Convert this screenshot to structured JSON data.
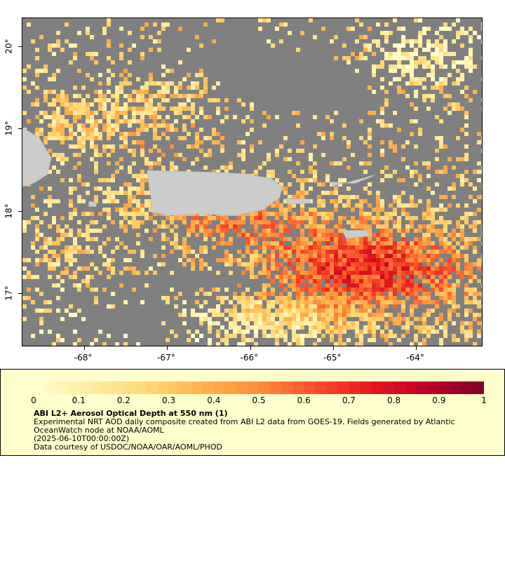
{
  "map": {
    "x_ticks": [
      "-68°",
      "-67°",
      "-66°",
      "-65°",
      "-64°"
    ],
    "y_ticks": [
      "20°",
      "19°",
      "18°",
      "17°"
    ],
    "x_tick_values": [
      -68,
      -67,
      -66,
      -65,
      -64
    ],
    "y_tick_values": [
      20,
      19,
      18,
      17
    ],
    "lon_range": [
      -68.75,
      -63.2
    ],
    "lat_range": [
      16.35,
      20.35
    ],
    "background_color": "#808080",
    "land_color": "#cccccc",
    "land_names": [
      "puerto-rico-land",
      "hispaniola-land",
      "vieques-land",
      "virgin-islands-land",
      "st-croix-land",
      "mona-island-land"
    ]
  },
  "legend": {
    "ticks": [
      "0",
      "0.1",
      "0.2",
      "0.3",
      "0.4",
      "0.5",
      "0.6",
      "0.7",
      "0.8",
      "0.9",
      "1"
    ],
    "title": "ABI L2+ Aerosol Optical Depth at 550 nm (1)",
    "description": "Experimental NRT AOD daily composite created from ABI L2 data from GOES-19. Fields generated by Atlantic OceanWatch node at NOAA/AOML",
    "date": "(2025-06-10T00:00:00Z)",
    "credit": "Data courtesy of USDOC/NOAA/OAR/AOML/PHOD",
    "colormap": [
      "#ffffcc",
      "#ffeda0",
      "#fed976",
      "#feb24c",
      "#fd8d3c",
      "#fc4e2a",
      "#e31a1c",
      "#bd0026",
      "#800026"
    ],
    "range": [
      0,
      1
    ]
  }
}
